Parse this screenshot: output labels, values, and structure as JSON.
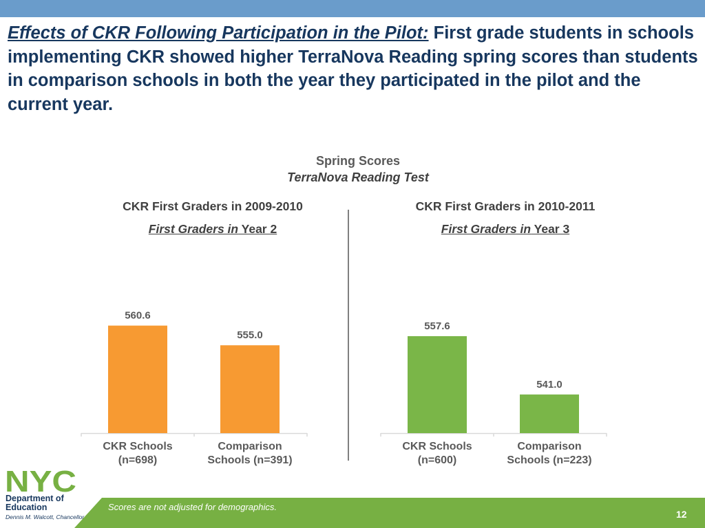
{
  "header": {
    "lead": "Effects of CKR Following Participation in the Pilot:",
    "body": "First grade students in schools implementing CKR showed higher TerraNova Reading spring scores than students in comparison schools in both the year they participated in the pilot and the current year."
  },
  "subtitle": {
    "line1": "Spring Scores",
    "line2": "TerraNova Reading Test"
  },
  "panels": [
    {
      "title": "CKR First Graders in 2009-2010",
      "subtitle_italic": "First Graders in",
      "subtitle_rest": " Year 2",
      "categories": [
        "CKR Schools\n(n=698)",
        "Comparison\nSchools (n=391)"
      ]
    },
    {
      "title": "CKR First Graders in 2010-2011",
      "subtitle_italic": "First Graders in",
      "subtitle_rest": " Year 3",
      "categories": [
        "CKR Schools\n(n=600)",
        "Comparison\nSchools (n=223)"
      ]
    }
  ],
  "chart_data": [
    {
      "type": "bar",
      "title": "CKR First Graders in 2009-2010",
      "categories": [
        "CKR Schools (n=698)",
        "Comparison Schools (n=391)"
      ],
      "values": [
        560.6,
        555.0
      ],
      "labels": [
        "560.6",
        "555.0"
      ],
      "ylim": [
        530,
        575
      ],
      "color": "#f79a32"
    },
    {
      "type": "bar",
      "title": "CKR First Graders in 2010-2011",
      "categories": [
        "CKR Schools (n=600)",
        "Comparison Schools (n=223)"
      ],
      "values": [
        557.6,
        541.0
      ],
      "labels": [
        "557.6",
        "541.0"
      ],
      "ylim": [
        530,
        575
      ],
      "color": "#7ab648"
    }
  ],
  "logo": {
    "text": "NYC",
    "dept": "Department of Education",
    "chancellor": "Dennis M. Walcott, Chancellor"
  },
  "footer": {
    "note": "Scores are not adjusted for demographics.",
    "page": "12"
  }
}
